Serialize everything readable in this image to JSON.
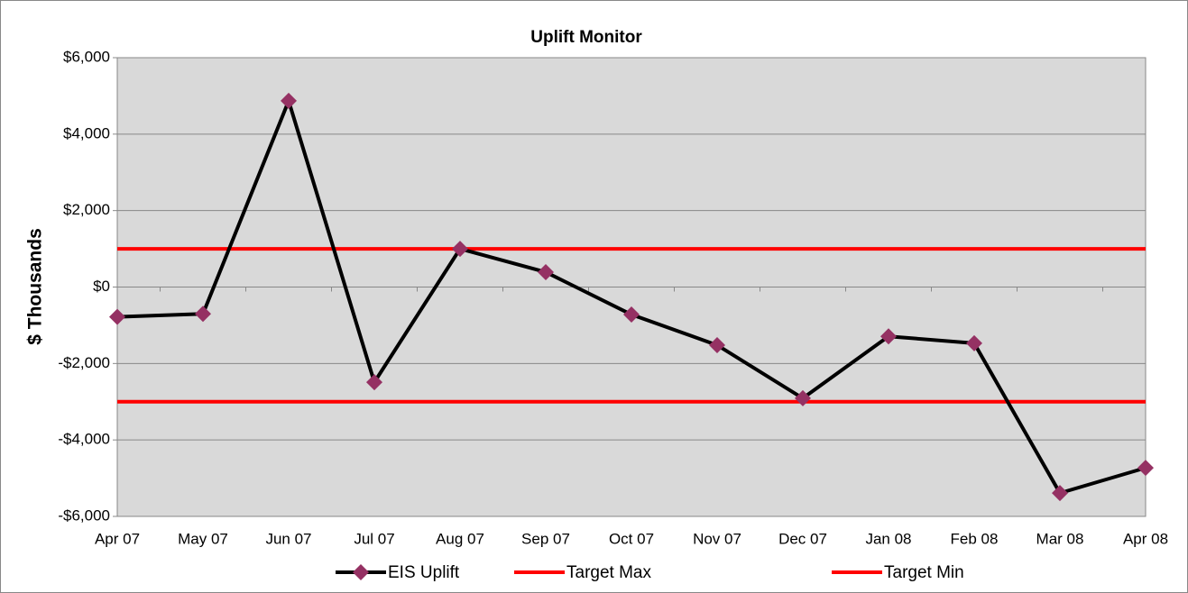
{
  "chart_data": {
    "type": "line",
    "title": "Uplift Monitor",
    "y_label": "$ Thousands",
    "categories": [
      "Apr 07",
      "May 07",
      "Jun 07",
      "Jul 07",
      "Aug 07",
      "Sep 07",
      "Oct 07",
      "Nov 07",
      "Dec 07",
      "Jan 08",
      "Feb 08",
      "Mar 08",
      "Apr 08"
    ],
    "series": [
      {
        "name": "EIS Uplift",
        "color": "#000000",
        "marker": "diamond",
        "marker_color": "#953163",
        "values": [
          -780,
          -700,
          4870,
          -2490,
          1000,
          390,
          -720,
          -1520,
          -2910,
          -1290,
          -1470,
          -5390,
          -4730
        ]
      },
      {
        "name": "Target Max",
        "color": "#ff0000",
        "values": [
          1000,
          1000,
          1000,
          1000,
          1000,
          1000,
          1000,
          1000,
          1000,
          1000,
          1000,
          1000,
          1000
        ]
      },
      {
        "name": "Target Min",
        "color": "#ff0000",
        "values": [
          -3000,
          -3000,
          -3000,
          -3000,
          -3000,
          -3000,
          -3000,
          -3000,
          -3000,
          -3000,
          -3000,
          -3000,
          -3000
        ]
      }
    ],
    "ylim": [
      -6000,
      6000
    ],
    "yticks": [
      {
        "value": -6000,
        "label": "-$6,000"
      },
      {
        "value": -4000,
        "label": "-$4,000"
      },
      {
        "value": -2000,
        "label": "-$2,000"
      },
      {
        "value": 0,
        "label": "$0"
      },
      {
        "value": 2000,
        "label": "$2,000"
      },
      {
        "value": 4000,
        "label": "$4,000"
      },
      {
        "value": 6000,
        "label": "$6,000"
      }
    ],
    "grid": true,
    "legend": "bottom"
  }
}
